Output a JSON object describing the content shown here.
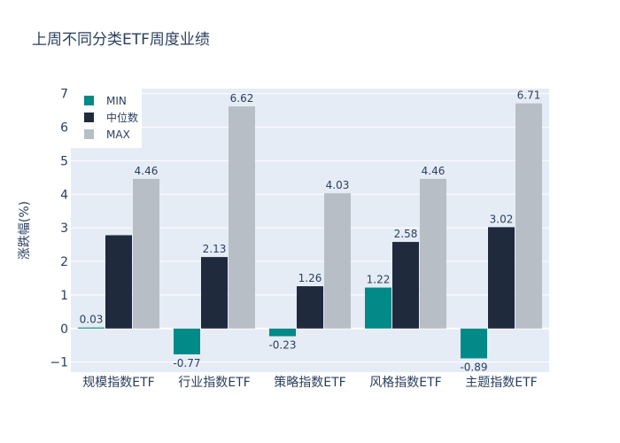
{
  "chart_data": {
    "type": "bar",
    "title": "上周不同分类ETF周度业绩",
    "xlabel": "",
    "ylabel": "涨跌幅(%)",
    "categories": [
      "规模指数ETF",
      "行业指数ETF",
      "策略指数ETF",
      "风格指数ETF",
      "主题指数ETF"
    ],
    "series": [
      {
        "name": "MIN",
        "color": "#028a88",
        "values": [
          0.03,
          -0.77,
          -0.23,
          1.22,
          -0.89
        ]
      },
      {
        "name": "中位数",
        "color": "#1f2a3d",
        "values": [
          2.78,
          2.13,
          1.26,
          2.58,
          3.02
        ]
      },
      {
        "name": "MAX",
        "color": "#b7bec6",
        "values": [
          4.46,
          6.62,
          4.03,
          4.46,
          6.71
        ]
      }
    ],
    "data_labels": [
      [
        "0.03",
        "",
        "4.46"
      ],
      [
        "-0.77",
        "2.13",
        "6.62"
      ],
      [
        "-0.23",
        "1.26",
        "4.03"
      ],
      [
        "1.22",
        "2.58",
        "4.46"
      ],
      [
        "-0.89",
        "3.02",
        "6.71"
      ]
    ],
    "ylim": [
      -1.3,
      7.15
    ],
    "yticks": [
      -1,
      0,
      1,
      2,
      3,
      4,
      5,
      6,
      7
    ],
    "ytick_labels": [
      "−1",
      "0",
      "1",
      "2",
      "3",
      "4",
      "5",
      "6",
      "7"
    ],
    "grid": true,
    "legend_position": "top-left",
    "plot_bg": "#e5ecf6",
    "text_color": "#2a3f5f"
  }
}
